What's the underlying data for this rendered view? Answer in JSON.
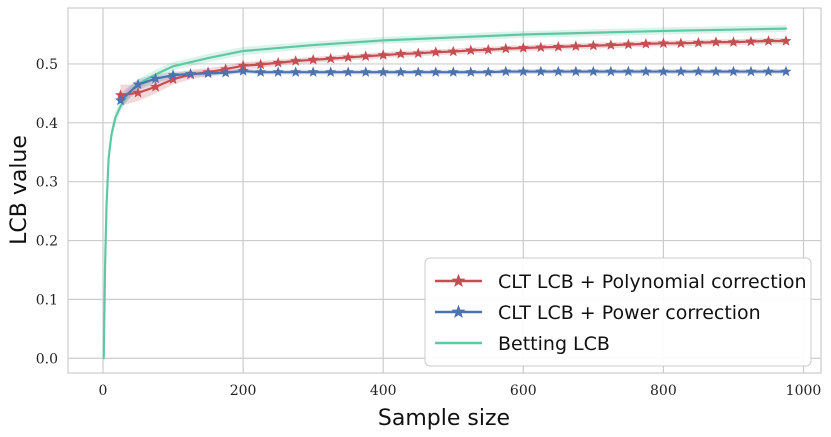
{
  "chart_data": {
    "type": "line",
    "title": "",
    "xlabel": "Sample size",
    "ylabel": "LCB value",
    "xlim": [
      -50,
      1025
    ],
    "ylim": [
      -0.025,
      0.595
    ],
    "xticks": [
      0,
      200,
      400,
      600,
      800,
      1000
    ],
    "yticks": [
      0.0,
      0.1,
      0.2,
      0.3,
      0.4,
      0.5
    ],
    "xtick_labels": [
      "0",
      "200",
      "400",
      "600",
      "800",
      "1000"
    ],
    "ytick_labels": [
      "0.0",
      "0.1",
      "0.2",
      "0.3",
      "0.4",
      "0.5"
    ],
    "grid": true,
    "legend_position": "bottom-right",
    "series": [
      {
        "name": "CLT LCB + Polynomial correction",
        "color": "#c44e52",
        "marker": "star",
        "band_halfwidth": [
          0.018,
          0.014,
          0.011,
          0.009,
          0.008,
          0.007,
          0.006,
          0.006,
          0.006,
          0.005,
          0.005,
          0.005,
          0.005,
          0.005,
          0.005,
          0.005,
          0.005,
          0.005,
          0.005,
          0.005,
          0.005,
          0.005,
          0.005,
          0.005,
          0.005,
          0.005,
          0.005,
          0.005,
          0.005,
          0.005,
          0.005,
          0.005,
          0.005,
          0.005,
          0.005,
          0.005,
          0.005,
          0.005,
          0.005
        ],
        "x": [
          25,
          50,
          75,
          100,
          125,
          150,
          175,
          200,
          225,
          250,
          275,
          300,
          325,
          350,
          375,
          400,
          425,
          450,
          475,
          500,
          525,
          550,
          575,
          600,
          625,
          650,
          675,
          700,
          725,
          750,
          775,
          800,
          825,
          850,
          875,
          900,
          925,
          950,
          975
        ],
        "y": [
          0.447,
          0.451,
          0.461,
          0.474,
          0.482,
          0.486,
          0.491,
          0.497,
          0.499,
          0.502,
          0.505,
          0.507,
          0.509,
          0.511,
          0.513,
          0.515,
          0.517,
          0.518,
          0.52,
          0.521,
          0.523,
          0.524,
          0.526,
          0.527,
          0.528,
          0.529,
          0.53,
          0.531,
          0.532,
          0.533,
          0.534,
          0.535,
          0.535,
          0.536,
          0.537,
          0.537,
          0.538,
          0.539,
          0.539
        ]
      },
      {
        "name": "CLT LCB + Power correction",
        "color": "#4c72b0",
        "marker": "star",
        "band_halfwidth": [
          0.012,
          0.009,
          0.007,
          0.006,
          0.005,
          0.005,
          0.004,
          0.004,
          0.004,
          0.004,
          0.004,
          0.004,
          0.004,
          0.004,
          0.004,
          0.004,
          0.004,
          0.004,
          0.004,
          0.004,
          0.004,
          0.004,
          0.004,
          0.004,
          0.004,
          0.004,
          0.004,
          0.004,
          0.004,
          0.004,
          0.004,
          0.004,
          0.004,
          0.004,
          0.004,
          0.004,
          0.004,
          0.004,
          0.004
        ],
        "x": [
          25,
          50,
          75,
          100,
          125,
          150,
          175,
          200,
          225,
          250,
          275,
          300,
          325,
          350,
          375,
          400,
          425,
          450,
          475,
          500,
          525,
          550,
          575,
          600,
          625,
          650,
          675,
          700,
          725,
          750,
          775,
          800,
          825,
          850,
          875,
          900,
          925,
          950,
          975
        ],
        "y": [
          0.438,
          0.465,
          0.475,
          0.481,
          0.483,
          0.484,
          0.485,
          0.488,
          0.486,
          0.486,
          0.486,
          0.486,
          0.486,
          0.486,
          0.486,
          0.486,
          0.486,
          0.486,
          0.486,
          0.486,
          0.486,
          0.486,
          0.487,
          0.487,
          0.487,
          0.487,
          0.487,
          0.487,
          0.487,
          0.487,
          0.487,
          0.487,
          0.487,
          0.487,
          0.487,
          0.487,
          0.487,
          0.487,
          0.487
        ]
      },
      {
        "name": "Betting LCB",
        "color": "#5fc8a3",
        "marker": "none",
        "band_halfwidth": [
          0.0,
          0.004,
          0.01,
          0.012,
          0.012,
          0.011,
          0.01,
          0.009,
          0.008,
          0.008,
          0.007,
          0.007,
          0.007,
          0.006,
          0.006,
          0.006,
          0.006,
          0.006,
          0.006
        ],
        "x": [
          1,
          3,
          5,
          8,
          12,
          18,
          25,
          35,
          50,
          75,
          100,
          150,
          200,
          300,
          400,
          500,
          600,
          800,
          975
        ],
        "y": [
          0.0,
          0.16,
          0.26,
          0.34,
          0.38,
          0.41,
          0.428,
          0.448,
          0.466,
          0.482,
          0.496,
          0.51,
          0.522,
          0.532,
          0.54,
          0.545,
          0.55,
          0.556,
          0.56
        ]
      }
    ]
  }
}
